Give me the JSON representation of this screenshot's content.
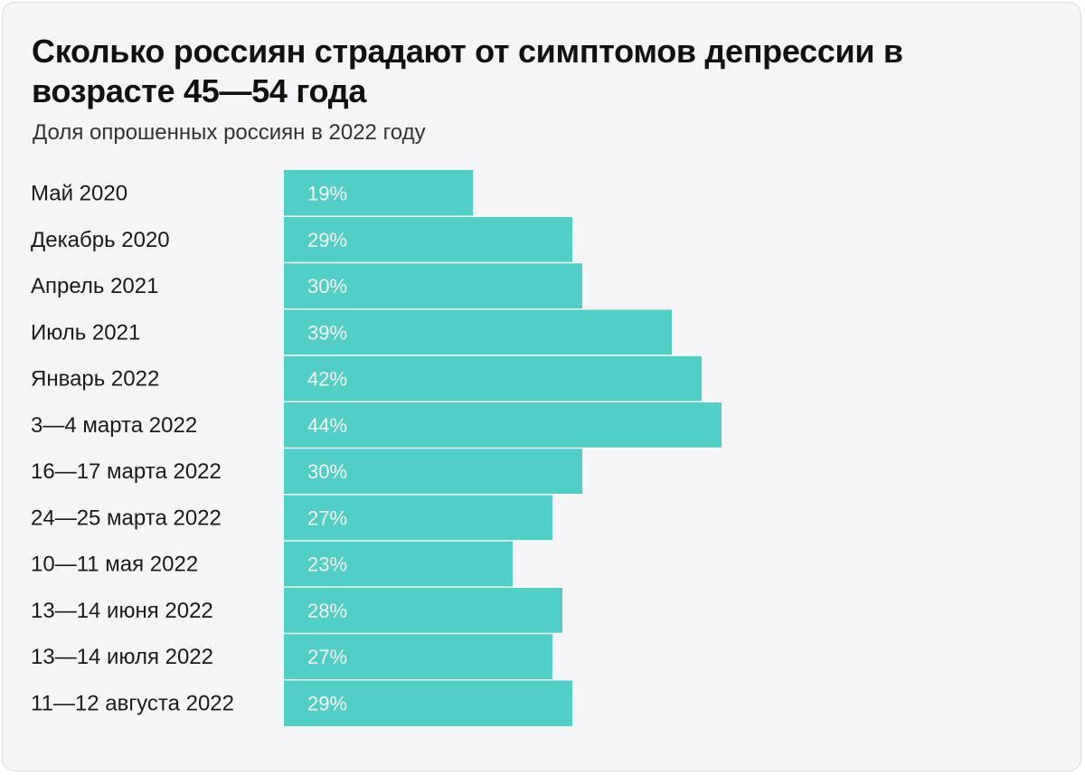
{
  "title": "Сколько россиян страдают от симптомов депрессии в возрасте 45—54 года",
  "subtitle": "Доля опрошенных россиян в 2022 году",
  "colors": {
    "bar": "#4fcfc5",
    "bar_separator": "#ffffff",
    "bar_label": "#ffffff",
    "category_label": "#1a1a1a",
    "background": "#f5f5f7"
  },
  "chart_data": {
    "type": "bar",
    "orientation": "horizontal",
    "title": "Сколько россиян страдают от симптомов депрессии в возрасте 45—54 года",
    "subtitle": "Доля опрошенных россиян в 2022 году",
    "xlabel": "",
    "ylabel": "",
    "unit": "%",
    "grid": false,
    "legend": "none",
    "categories": [
      "Май 2020",
      "Декабрь 2020",
      "Апрель 2021",
      "Июль 2021",
      "Январь 2022",
      "3—4 марта 2022",
      "16—17 марта 2022",
      "24—25 марта 2022",
      "10—11 мая 2022",
      "13—14 июня 2022",
      "13—14 июля 2022",
      "11—12 августа 2022"
    ],
    "values": [
      19,
      29,
      30,
      39,
      42,
      44,
      30,
      27,
      23,
      28,
      27,
      29
    ],
    "value_labels": [
      "19%",
      "29%",
      "30%",
      "39%",
      "42%",
      "44%",
      "30%",
      "27%",
      "23%",
      "28%",
      "27%",
      "29%"
    ]
  }
}
